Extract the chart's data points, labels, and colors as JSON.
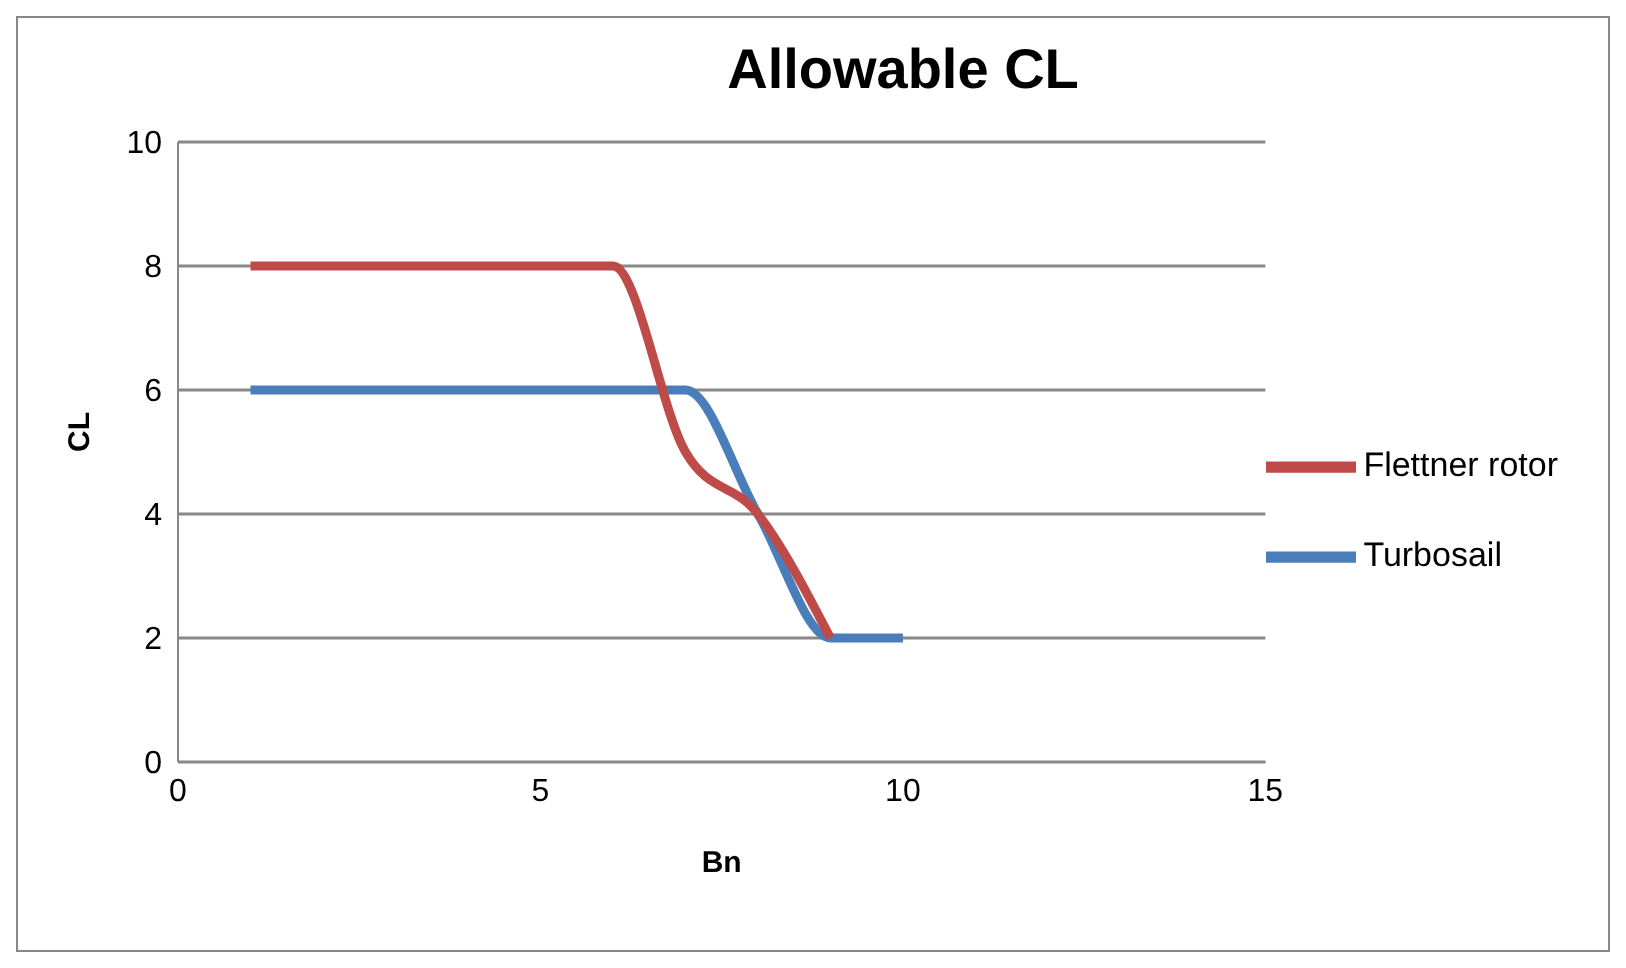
{
  "chart_data": {
    "type": "line",
    "title": "Allowable CL",
    "xlabel": "Bn",
    "ylabel": "CL",
    "series": [
      {
        "name": "Turbosail",
        "color": "#4a7ebb",
        "x": [
          1,
          5,
          6,
          7,
          8,
          9,
          10
        ],
        "values": [
          6,
          6,
          6,
          6,
          4,
          2,
          2
        ]
      },
      {
        "name": "Flettner rotor",
        "color": "#be4b48",
        "x": [
          1,
          5,
          6,
          7,
          8,
          9
        ],
        "values": [
          8,
          8,
          8,
          5,
          4,
          2
        ]
      }
    ],
    "xlim": [
      0,
      15
    ],
    "xticks": [
      0,
      5,
      10,
      15
    ],
    "ylim": [
      0,
      10
    ],
    "yticks": [
      0,
      2,
      4,
      6,
      8,
      10
    ],
    "grid": "y",
    "legend": "right",
    "marker": "none",
    "line_style": "solid"
  }
}
